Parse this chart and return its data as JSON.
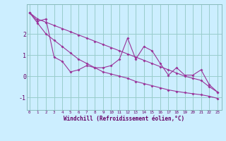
{
  "xlabel": "Windchill (Refroidissement éolien,°C)",
  "background_color": "#cceeff",
  "grid_color": "#99cccc",
  "line_color": "#993399",
  "x_hours": [
    0,
    1,
    2,
    3,
    4,
    5,
    6,
    7,
    8,
    9,
    10,
    11,
    12,
    13,
    14,
    15,
    16,
    17,
    18,
    19,
    20,
    21,
    22,
    23
  ],
  "line_jagged_y": [
    3.0,
    2.6,
    2.7,
    0.9,
    0.7,
    0.2,
    0.3,
    0.5,
    0.4,
    0.4,
    0.5,
    0.8,
    1.8,
    0.8,
    1.4,
    1.2,
    0.6,
    0.05,
    0.4,
    0.05,
    0.05,
    0.3,
    -0.4,
    -0.75
  ],
  "line_upper_y": [
    3.0,
    2.7,
    2.55,
    2.4,
    2.25,
    2.1,
    1.95,
    1.8,
    1.65,
    1.5,
    1.35,
    1.2,
    1.05,
    0.9,
    0.75,
    0.6,
    0.45,
    0.3,
    0.15,
    0.0,
    -0.1,
    -0.2,
    -0.5,
    -0.75
  ],
  "line_lower_y": [
    3.0,
    2.5,
    2.0,
    1.7,
    1.4,
    1.1,
    0.8,
    0.6,
    0.4,
    0.2,
    0.1,
    0.0,
    -0.1,
    -0.25,
    -0.35,
    -0.45,
    -0.55,
    -0.65,
    -0.72,
    -0.78,
    -0.83,
    -0.88,
    -0.95,
    -1.05
  ],
  "ylim": [
    -1.6,
    3.4
  ],
  "yticks": [
    -1,
    0,
    1,
    2
  ],
  "xlim": [
    -0.3,
    23.5
  ],
  "font_color": "#660066"
}
